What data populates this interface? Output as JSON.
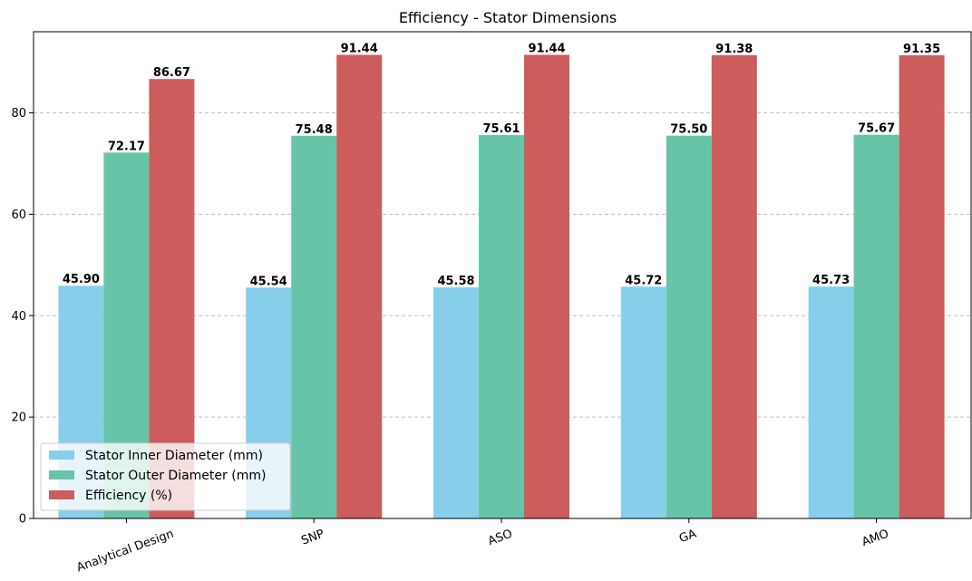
{
  "chart_data": {
    "type": "bar",
    "title": "Efficiency - Stator Dimensions",
    "xlabel": "",
    "ylabel": "",
    "categories": [
      "Analytical Design",
      "SNP",
      "ASO",
      "GA",
      "AMO"
    ],
    "series": [
      {
        "name": "Stator Inner Diameter (mm)",
        "color": "#87ceeb",
        "values": [
          45.9,
          45.54,
          45.58,
          45.72,
          45.73
        ],
        "labels": [
          "45.90",
          "45.54",
          "45.58",
          "45.72",
          "45.73"
        ]
      },
      {
        "name": "Stator Outer Diameter (mm)",
        "color": "#66c5a8",
        "values": [
          72.17,
          75.48,
          75.61,
          75.5,
          75.67
        ],
        "labels": [
          "72.17",
          "75.48",
          "75.61",
          "75.50",
          "75.67"
        ]
      },
      {
        "name": "Efficiency (%)",
        "color": "#cd5c5c",
        "values": [
          86.67,
          91.44,
          91.44,
          91.38,
          91.35
        ],
        "labels": [
          "86.67",
          "91.44",
          "91.44",
          "91.38",
          "91.35"
        ]
      }
    ],
    "ylim": [
      0,
      96
    ],
    "yticks": [
      0,
      20,
      40,
      60,
      80
    ],
    "grid": "y-dashed",
    "legend": "lower-left"
  }
}
